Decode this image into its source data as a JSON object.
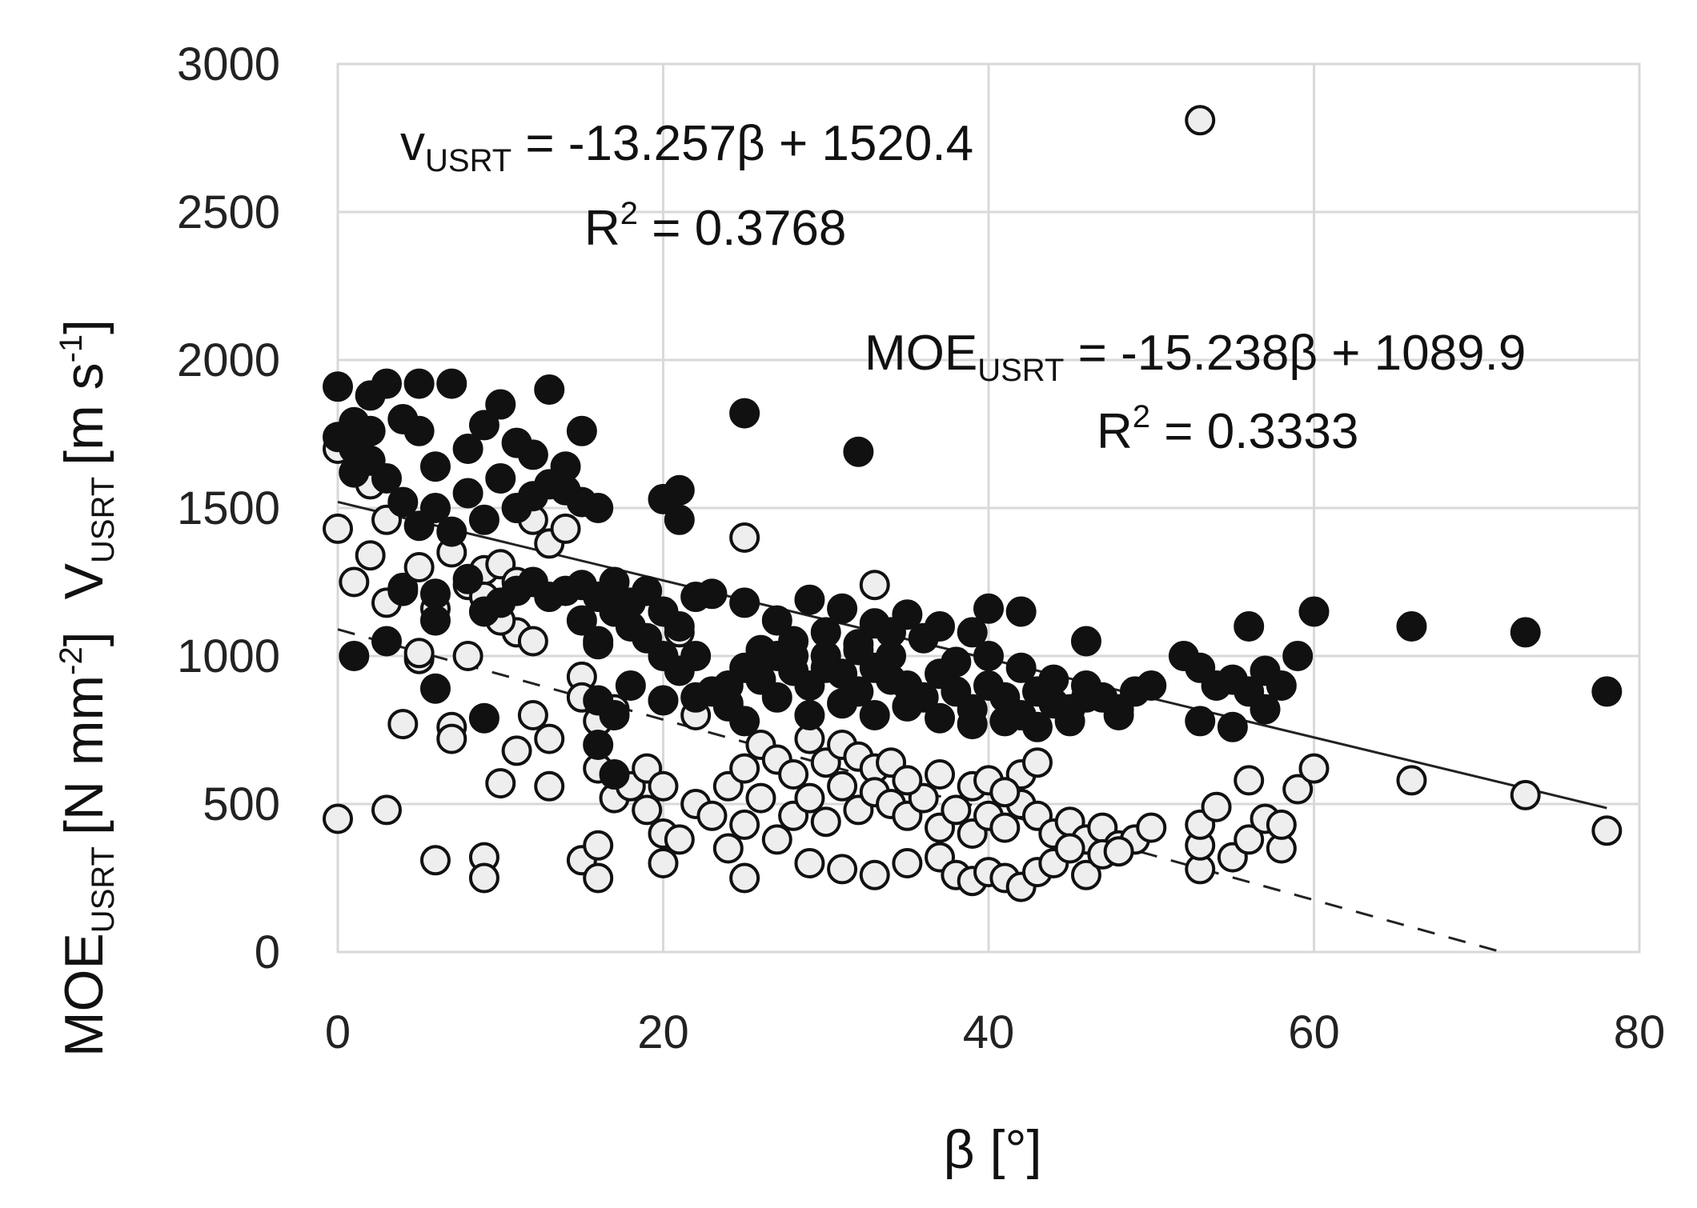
{
  "chart_data": {
    "type": "scatter",
    "title": "",
    "x_axis": {
      "label": "β [°]",
      "min": 0,
      "max": 80,
      "ticks": [
        "0",
        "20",
        "40",
        "60",
        "80"
      ]
    },
    "y_axis": {
      "label_moe": "MOE",
      "label_moe_sub": "USRT",
      "label_moe_unit_pre": "[N mm",
      "label_moe_unit_sup": "-2",
      "label_moe_unit_post": "]",
      "label_v": "V",
      "label_v_sub": "USRT",
      "label_v_unit_pre": "[m s",
      "label_v_unit_sup": "-1",
      "label_v_unit_post": "]",
      "min": 0,
      "max": 3000,
      "ticks": [
        "0",
        "500",
        "1000",
        "1500",
        "2000",
        "2500",
        "3000"
      ]
    },
    "grid": true,
    "legend": "none",
    "annotations": {
      "v_eq_prefix": "v",
      "v_eq_sub": "USRT",
      "v_eq_rest": " = -13.257β + 1520.4",
      "v_r2_prefix": "R",
      "v_r2_sup": "2",
      "v_r2_rest": " = 0.3768",
      "moe_eq_prefix": "MOE",
      "moe_eq_sub": "USRT",
      "moe_eq_rest": " = -15.238β + 1089.9",
      "moe_r2_prefix": "R",
      "moe_r2_sup": "2",
      "moe_r2_rest": " = 0.3333"
    },
    "colors": {
      "v_marker": "#111111",
      "moe_marker_fill": "#eeeeee",
      "marker_stroke": "#111111",
      "grid": "#d9d9d9"
    },
    "series": [
      {
        "marker": "filled",
        "trendline": {
          "slope": -13.257,
          "intercept": 1520.4,
          "style": "solid"
        },
        "points": [
          [
            0,
            1910
          ],
          [
            1,
            1790
          ],
          [
            0,
            1740
          ],
          [
            2,
            1880
          ],
          [
            3,
            1920
          ],
          [
            1,
            1700
          ],
          [
            2,
            1760
          ],
          [
            5,
            1920
          ],
          [
            4,
            1800
          ],
          [
            7,
            1920
          ],
          [
            5,
            1760
          ],
          [
            8,
            1700
          ],
          [
            6,
            1640
          ],
          [
            10,
            1850
          ],
          [
            9,
            1780
          ],
          [
            11,
            1720
          ],
          [
            13,
            1900
          ],
          [
            12,
            1680
          ],
          [
            14,
            1640
          ],
          [
            15,
            1760
          ],
          [
            10,
            1600
          ],
          [
            8,
            1550
          ],
          [
            6,
            1500
          ],
          [
            4,
            1520
          ],
          [
            7,
            1420
          ],
          [
            9,
            1460
          ],
          [
            11,
            1500
          ],
          [
            12,
            1540
          ],
          [
            13,
            1580
          ],
          [
            14,
            1560
          ],
          [
            15,
            1520
          ],
          [
            16,
            1500
          ],
          [
            5,
            1440
          ],
          [
            3,
            1600
          ],
          [
            2,
            1660
          ],
          [
            1,
            1620
          ],
          [
            20,
            1530
          ],
          [
            21,
            1560
          ],
          [
            21,
            1460
          ],
          [
            25,
            1820
          ],
          [
            32,
            1690
          ],
          [
            6,
            1210
          ],
          [
            8,
            1260
          ],
          [
            10,
            1180
          ],
          [
            12,
            1250
          ],
          [
            14,
            1220
          ],
          [
            16,
            1200
          ],
          [
            18,
            1180
          ],
          [
            20,
            1150
          ],
          [
            22,
            1200
          ],
          [
            4,
            1220
          ],
          [
            6,
            1120
          ],
          [
            9,
            1150
          ],
          [
            11,
            1220
          ],
          [
            13,
            1200
          ],
          [
            15,
            1240
          ],
          [
            17,
            1250
          ],
          [
            19,
            1220
          ],
          [
            21,
            1100
          ],
          [
            23,
            1210
          ],
          [
            25,
            1180
          ],
          [
            27,
            1120
          ],
          [
            29,
            1190
          ],
          [
            31,
            1160
          ],
          [
            33,
            1110
          ],
          [
            35,
            1140
          ],
          [
            37,
            1100
          ],
          [
            39,
            1080
          ],
          [
            40,
            1160
          ],
          [
            42,
            1150
          ],
          [
            46,
            1050
          ],
          [
            1,
            1000
          ],
          [
            3,
            1050
          ],
          [
            6,
            890
          ],
          [
            9,
            790
          ],
          [
            15,
            1120
          ],
          [
            16,
            1050
          ],
          [
            17,
            1150
          ],
          [
            18,
            1100
          ],
          [
            19,
            1060
          ],
          [
            20,
            1000
          ],
          [
            21,
            950
          ],
          [
            22,
            1000
          ],
          [
            23,
            880
          ],
          [
            24,
            830
          ],
          [
            25,
            960
          ],
          [
            26,
            920
          ],
          [
            27,
            1000
          ],
          [
            28,
            950
          ],
          [
            29,
            900
          ],
          [
            30,
            1000
          ],
          [
            31,
            940
          ],
          [
            32,
            880
          ],
          [
            33,
            960
          ],
          [
            34,
            920
          ],
          [
            35,
            900
          ],
          [
            36,
            860
          ],
          [
            37,
            940
          ],
          [
            38,
            880
          ],
          [
            39,
            820
          ],
          [
            40,
            900
          ],
          [
            41,
            860
          ],
          [
            42,
            800
          ],
          [
            43,
            880
          ],
          [
            44,
            840
          ],
          [
            45,
            780
          ],
          [
            46,
            900
          ],
          [
            47,
            860
          ],
          [
            48,
            800
          ],
          [
            49,
            880
          ],
          [
            50,
            900
          ],
          [
            52,
            1000
          ],
          [
            53,
            960
          ],
          [
            54,
            900
          ],
          [
            55,
            920
          ],
          [
            56,
            880
          ],
          [
            57,
            950
          ],
          [
            58,
            900
          ],
          [
            59,
            1000
          ],
          [
            60,
            1150
          ],
          [
            56,
            1100
          ],
          [
            66,
            1100
          ],
          [
            73,
            1080
          ],
          [
            78,
            880
          ],
          [
            24,
            840
          ],
          [
            26,
            1020
          ],
          [
            28,
            1050
          ],
          [
            30,
            1080
          ],
          [
            32,
            1020
          ],
          [
            34,
            1000
          ],
          [
            36,
            1060
          ],
          [
            38,
            980
          ],
          [
            40,
            1000
          ],
          [
            42,
            960
          ],
          [
            44,
            920
          ],
          [
            46,
            860
          ],
          [
            48,
            820
          ],
          [
            25,
            780
          ],
          [
            27,
            860
          ],
          [
            29,
            800
          ],
          [
            31,
            840
          ],
          [
            33,
            800
          ],
          [
            35,
            830
          ],
          [
            37,
            790
          ],
          [
            39,
            770
          ],
          [
            41,
            780
          ],
          [
            43,
            760
          ],
          [
            45,
            820
          ],
          [
            53,
            780
          ],
          [
            55,
            760
          ],
          [
            57,
            820
          ],
          [
            16,
            850
          ],
          [
            17,
            800
          ],
          [
            16,
            700
          ],
          [
            17,
            600
          ],
          [
            18,
            900
          ],
          [
            20,
            850
          ],
          [
            22,
            860
          ],
          [
            24,
            900
          ],
          [
            26,
            980
          ],
          [
            28,
            1000
          ],
          [
            30,
            960
          ],
          [
            32,
            1040
          ],
          [
            34,
            1080
          ]
        ]
      },
      {
        "marker": "open",
        "trendline": {
          "slope": -15.238,
          "intercept": 1089.9,
          "style": "dashed"
        },
        "points": [
          [
            53,
            2810
          ],
          [
            0,
            1430
          ],
          [
            0,
            1700
          ],
          [
            1,
            1620
          ],
          [
            2,
            1580
          ],
          [
            3,
            1460
          ],
          [
            1,
            1250
          ],
          [
            2,
            1340
          ],
          [
            3,
            1180
          ],
          [
            4,
            1230
          ],
          [
            5,
            1300
          ],
          [
            6,
            1160
          ],
          [
            7,
            1350
          ],
          [
            8,
            1240
          ],
          [
            9,
            1290
          ],
          [
            10,
            1310
          ],
          [
            11,
            1250
          ],
          [
            12,
            1460
          ],
          [
            13,
            1380
          ],
          [
            14,
            1430
          ],
          [
            11,
            1080
          ],
          [
            10,
            1120
          ],
          [
            12,
            1050
          ],
          [
            9,
            1200
          ],
          [
            8,
            1000
          ],
          [
            5,
            990
          ],
          [
            4,
            770
          ],
          [
            7,
            760
          ],
          [
            7,
            720
          ],
          [
            10,
            570
          ],
          [
            11,
            680
          ],
          [
            12,
            800
          ],
          [
            13,
            720
          ],
          [
            13,
            560
          ],
          [
            15,
            930
          ],
          [
            16,
            1040
          ],
          [
            15,
            860
          ],
          [
            16,
            780
          ],
          [
            17,
            820
          ],
          [
            16,
            620
          ],
          [
            17,
            520
          ],
          [
            18,
            560
          ],
          [
            19,
            620
          ],
          [
            20,
            560
          ],
          [
            21,
            1080
          ],
          [
            22,
            800
          ],
          [
            19,
            480
          ],
          [
            20,
            400
          ],
          [
            21,
            380
          ],
          [
            22,
            500
          ],
          [
            23,
            460
          ],
          [
            20,
            300
          ],
          [
            15,
            310
          ],
          [
            16,
            250
          ],
          [
            16,
            360
          ],
          [
            25,
            1400
          ],
          [
            24,
            560
          ],
          [
            25,
            620
          ],
          [
            26,
            700
          ],
          [
            27,
            650
          ],
          [
            28,
            600
          ],
          [
            29,
            720
          ],
          [
            30,
            640
          ],
          [
            31,
            700
          ],
          [
            32,
            660
          ],
          [
            33,
            620
          ],
          [
            34,
            640
          ],
          [
            24,
            350
          ],
          [
            25,
            430
          ],
          [
            26,
            520
          ],
          [
            27,
            380
          ],
          [
            28,
            460
          ],
          [
            29,
            520
          ],
          [
            30,
            440
          ],
          [
            31,
            560
          ],
          [
            32,
            480
          ],
          [
            33,
            540
          ],
          [
            34,
            500
          ],
          [
            35,
            460
          ],
          [
            36,
            520
          ],
          [
            37,
            420
          ],
          [
            38,
            480
          ],
          [
            39,
            400
          ],
          [
            40,
            460
          ],
          [
            41,
            420
          ],
          [
            42,
            500
          ],
          [
            43,
            460
          ],
          [
            44,
            400
          ],
          [
            45,
            440
          ],
          [
            46,
            380
          ],
          [
            47,
            420
          ],
          [
            48,
            360
          ],
          [
            49,
            380
          ],
          [
            50,
            420
          ],
          [
            25,
            250
          ],
          [
            29,
            300
          ],
          [
            31,
            280
          ],
          [
            33,
            260
          ],
          [
            35,
            300
          ],
          [
            37,
            320
          ],
          [
            38,
            260
          ],
          [
            39,
            240
          ],
          [
            40,
            270
          ],
          [
            41,
            250
          ],
          [
            42,
            220
          ],
          [
            43,
            270
          ],
          [
            44,
            300
          ],
          [
            45,
            350
          ],
          [
            46,
            260
          ],
          [
            47,
            330
          ],
          [
            48,
            340
          ],
          [
            53,
            280
          ],
          [
            53,
            360
          ],
          [
            53,
            430
          ],
          [
            54,
            490
          ],
          [
            55,
            320
          ],
          [
            56,
            380
          ],
          [
            57,
            450
          ],
          [
            58,
            350
          ],
          [
            58,
            430
          ],
          [
            59,
            550
          ],
          [
            60,
            620
          ],
          [
            56,
            580
          ],
          [
            66,
            580
          ],
          [
            73,
            530
          ],
          [
            78,
            410
          ],
          [
            33,
            1240
          ],
          [
            35,
            580
          ],
          [
            37,
            600
          ],
          [
            39,
            560
          ],
          [
            40,
            580
          ],
          [
            42,
            600
          ],
          [
            43,
            640
          ],
          [
            41,
            540
          ],
          [
            0,
            450
          ],
          [
            3,
            480
          ],
          [
            6,
            310
          ],
          [
            9,
            320
          ],
          [
            9,
            250
          ],
          [
            5,
            1010
          ]
        ]
      }
    ]
  }
}
